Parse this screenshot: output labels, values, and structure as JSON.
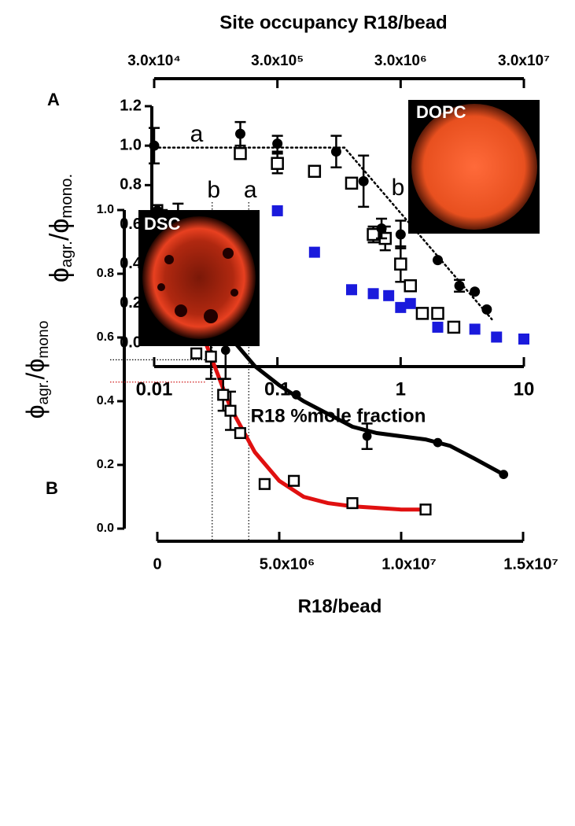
{
  "chart_data": [
    {
      "type": "scatter",
      "panel_label": "A",
      "x2_label": "Site occupancy R18/bead",
      "x_label": "R18 %mole fraction",
      "y_label": [
        {
          "text": "ϕ",
          "sub": false
        },
        {
          "text": "agr.",
          "sub": true
        },
        {
          "text": "/ϕ",
          "sub": false
        },
        {
          "text": "mono.",
          "sub": true
        }
      ],
      "xscale": "log",
      "xlim": [
        0.01,
        10
      ],
      "xticks": [
        0.01,
        0.1,
        1,
        10
      ],
      "x2scale": "log",
      "x2lim": [
        30000,
        30000000
      ],
      "x2ticks": [
        {
          "value": 30000,
          "label": "3.0x10⁴"
        },
        {
          "value": 300000,
          "label": "3.0x10⁵"
        },
        {
          "value": 3000000,
          "label": "3.0x10⁶"
        },
        {
          "value": 30000000,
          "label": "3.0x10⁷"
        }
      ],
      "ylim": [
        0,
        1.2
      ],
      "yticks": [
        {
          "value": 0,
          "label": "0.0"
        },
        0.2,
        0.4,
        0.6,
        0.8,
        {
          "value": 1,
          "label": "1.0"
        },
        1.2
      ],
      "annotations": [
        "a",
        "b"
      ],
      "insets": [
        {
          "label": "DSC"
        },
        {
          "label": "DOPC"
        }
      ],
      "series": [
        {
          "color": "#000000",
          "line": "dotted",
          "x": [
            0.01,
            0.35,
            5.5
          ],
          "values": [
            0.99,
            0.99,
            0.12
          ]
        },
        {
          "color": "#1a1adc",
          "marker": "square",
          "x": [
            0.1,
            0.2,
            0.4,
            0.6,
            0.8,
            1,
            1.2,
            1.5,
            2,
            4,
            6,
            10
          ],
          "values": [
            0.67,
            0.46,
            0.27,
            0.25,
            0.24,
            0.18,
            0.2,
            0.15,
            0.08,
            0.07,
            0.03,
            0.02
          ]
        },
        {
          "color": "#000000",
          "marker": "square-open",
          "x": [
            0.05,
            0.1,
            0.2,
            0.4,
            0.6,
            0.75,
            1,
            1.2,
            1.5,
            2,
            2.7
          ],
          "values": [
            0.96,
            0.91,
            0.87,
            0.81,
            0.55,
            0.53,
            0.4,
            0.29,
            0.15,
            0.15,
            0.08
          ],
          "errors": [
            null,
            0.05,
            null,
            null,
            0.04,
            0.06,
            0.09,
            null,
            null,
            null,
            null
          ]
        },
        {
          "color": "#000000",
          "marker": "circle",
          "x": [
            0.01,
            0.05,
            0.1,
            0.3,
            0.5,
            0.7,
            1,
            2,
            3,
            4,
            5
          ],
          "values": [
            1.0,
            1.06,
            1.01,
            0.97,
            0.82,
            0.58,
            0.55,
            0.42,
            0.29,
            0.26,
            0.17
          ],
          "errors": [
            0.09,
            0.06,
            0.04,
            0.08,
            0.13,
            0.05,
            0.07,
            null,
            0.03,
            null,
            null
          ]
        }
      ]
    },
    {
      "type": "scatter",
      "panel_label": "B",
      "x_label": "R18/bead",
      "y_label": [
        {
          "text": "ϕ",
          "sub": false
        },
        {
          "text": "agr.",
          "sub": true
        },
        {
          "text": "/ϕ",
          "sub": false
        },
        {
          "text": "mono",
          "sub": true
        }
      ],
      "xlim": [
        0,
        15000000
      ],
      "xticks": [
        0,
        {
          "value": 5000000,
          "label": "5.0x10⁶"
        },
        {
          "value": 10000000,
          "label": "1.0x10⁷"
        },
        {
          "value": 15000000,
          "label": "1.5x10⁷"
        }
      ],
      "ylim": [
        0,
        1
      ],
      "yticks": [
        {
          "value": 0,
          "label": "0.0"
        },
        0.2,
        0.4,
        0.6,
        0.8,
        {
          "value": 1,
          "label": "1.0"
        }
      ],
      "vlines": [
        {
          "label": "b",
          "value": 2250000
        },
        {
          "label": "a",
          "value": 3750000
        }
      ],
      "hlines": [
        {
          "value": 0.53,
          "color": "#000000"
        },
        {
          "value": 0.46,
          "color": "#cc0000"
        }
      ],
      "series": [
        {
          "color": "#000000",
          "line": "solid",
          "x": [
            0,
            1000000,
            2000000,
            3000000,
            4000000,
            5000000,
            6000000,
            7000000,
            8000000,
            9000000,
            10000000,
            11000000,
            12000000,
            13000000,
            14200000
          ],
          "values": [
            1.0,
            0.87,
            0.72,
            0.6,
            0.51,
            0.45,
            0.4,
            0.36,
            0.32,
            0.3,
            0.29,
            0.28,
            0.26,
            0.22,
            0.17
          ]
        },
        {
          "color": "#e01010",
          "line": "solid",
          "x": [
            0,
            1000000,
            2000000,
            3000000,
            4000000,
            5000000,
            6000000,
            7000000,
            8000000,
            9000000,
            10000000,
            11000000
          ],
          "values": [
            1.0,
            0.8,
            0.58,
            0.38,
            0.24,
            0.15,
            0.1,
            0.08,
            0.07,
            0.065,
            0.06,
            0.06
          ]
        },
        {
          "color": "#000000",
          "marker": "square-open",
          "x": [
            0,
            200000,
            400000,
            1000000,
            1600000,
            2200000,
            2700000,
            3000000,
            3400000,
            4400000,
            5600000,
            8000000,
            11000000
          ],
          "values": [
            1.0,
            0.95,
            0.9,
            0.8,
            0.55,
            0.54,
            0.42,
            0.37,
            0.3,
            0.14,
            0.15,
            0.08,
            0.06
          ],
          "errors": [
            null,
            0.05,
            0.03,
            0.15,
            null,
            0.07,
            0.05,
            0.06,
            null,
            null,
            null,
            null,
            null
          ]
        },
        {
          "color": "#000000",
          "marker": "circle",
          "x": [
            0,
            850000,
            1400000,
            1950000,
            2800000,
            5700000,
            8600000,
            11500000,
            14200000
          ],
          "values": [
            1.0,
            0.94,
            0.85,
            0.7,
            0.56,
            0.42,
            0.29,
            0.27,
            0.17
          ],
          "errors": [
            null,
            0.08,
            0.1,
            0.05,
            0.09,
            null,
            0.04,
            null,
            null
          ]
        }
      ]
    }
  ]
}
